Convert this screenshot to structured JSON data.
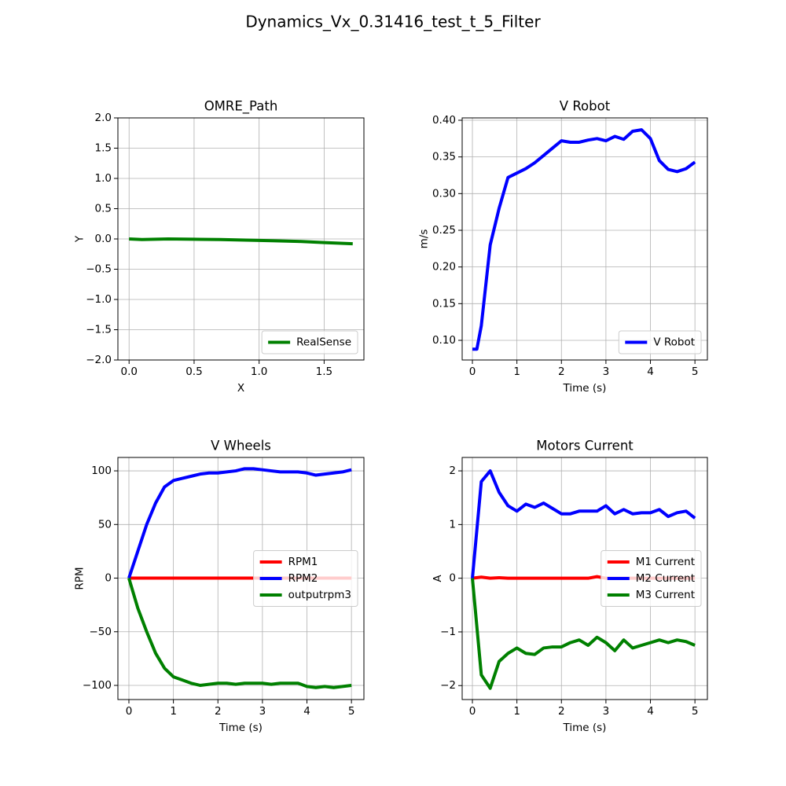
{
  "title": "Dynamics_Vx_0.31416_test_t_5_Filter",
  "chart_data": [
    {
      "type": "line",
      "title": "OMRE_Path",
      "xlabel": "X",
      "ylabel": "Y",
      "x": [
        0,
        0.1,
        0.3,
        0.5,
        0.7,
        0.9,
        1.1,
        1.3,
        1.5,
        1.72
      ],
      "series": [
        {
          "name": "RealSense",
          "color": "#008000",
          "values": [
            0,
            -0.01,
            0,
            -0.005,
            -0.01,
            -0.02,
            -0.03,
            -0.04,
            -0.06,
            -0.08
          ]
        }
      ],
      "xlim": [
        -0.086,
        1.806
      ],
      "ylim": [
        -2.0,
        2.0
      ],
      "xticks": [
        {
          "value": 0,
          "label": "0.0"
        },
        {
          "value": 0.5,
          "label": "0.5"
        },
        {
          "value": 1,
          "label": "1.0"
        },
        {
          "value": 1.5,
          "label": "1.5"
        }
      ],
      "yticks": [
        {
          "value": -2,
          "label": "−2.0"
        },
        {
          "value": -1.5,
          "label": "−1.5"
        },
        {
          "value": -1,
          "label": "−1.0"
        },
        {
          "value": -0.5,
          "label": "−0.5"
        },
        {
          "value": 0,
          "label": "0.0"
        },
        {
          "value": 0.5,
          "label": "0.5"
        },
        {
          "value": 1,
          "label": "1.0"
        },
        {
          "value": 1.5,
          "label": "1.5"
        },
        {
          "value": 2,
          "label": "2.0"
        }
      ],
      "grid": true,
      "legend": "lower right"
    },
    {
      "type": "line",
      "title": "V Robot",
      "xlabel": "Time (s)",
      "ylabel": "m/s",
      "x": [
        0,
        0.1,
        0.2,
        0.4,
        0.6,
        0.8,
        1.0,
        1.2,
        1.4,
        1.6,
        1.8,
        2.0,
        2.2,
        2.4,
        2.6,
        2.8,
        3.0,
        3.2,
        3.4,
        3.6,
        3.8,
        4.0,
        4.2,
        4.4,
        4.6,
        4.8,
        5.0
      ],
      "series": [
        {
          "name": "V Robot",
          "color": "#0000ff",
          "values": [
            0.088,
            0.088,
            0.12,
            0.23,
            0.28,
            0.322,
            0.328,
            0.334,
            0.342,
            0.352,
            0.362,
            0.372,
            0.37,
            0.37,
            0.373,
            0.375,
            0.372,
            0.378,
            0.374,
            0.385,
            0.387,
            0.375,
            0.345,
            0.333,
            0.33,
            0.334,
            0.343
          ]
        }
      ],
      "xlim": [
        -0.23,
        5.28
      ],
      "ylim": [
        0.0732,
        0.4032
      ],
      "xticks": [
        0,
        1,
        2,
        3,
        4,
        5
      ],
      "yticks": [
        {
          "value": 0.1,
          "label": "0.10"
        },
        0.15,
        {
          "value": 0.2,
          "label": "0.20"
        },
        0.25,
        {
          "value": 0.3,
          "label": "0.30"
        },
        0.35,
        {
          "value": 0.4,
          "label": "0.40"
        }
      ],
      "grid": true,
      "legend": "lower right"
    },
    {
      "type": "line",
      "title": "V Wheels",
      "xlabel": "Time (s)",
      "ylabel": "RPM",
      "x": [
        0,
        0.2,
        0.4,
        0.6,
        0.8,
        1.0,
        1.2,
        1.4,
        1.6,
        1.8,
        2.0,
        2.2,
        2.4,
        2.6,
        2.8,
        3.0,
        3.2,
        3.4,
        3.6,
        3.8,
        4.0,
        4.2,
        4.4,
        4.6,
        4.8,
        5.0
      ],
      "series": [
        {
          "name": "RPM1",
          "color": "#ff0000",
          "values": [
            0,
            0,
            0,
            0,
            0,
            0,
            0,
            0,
            0,
            0,
            0,
            0,
            0,
            0,
            0,
            0,
            0,
            0,
            0,
            0,
            0,
            0,
            0,
            0,
            0,
            0
          ]
        },
        {
          "name": "RPM2",
          "color": "#0000ff",
          "values": [
            0,
            25,
            50,
            70,
            85,
            91,
            93,
            95,
            97,
            98,
            98,
            99,
            100,
            102,
            102,
            101,
            100,
            99,
            99,
            99,
            98,
            96,
            97,
            98,
            99,
            101
          ]
        },
        {
          "name": "outputrpm3",
          "color": "#008000",
          "values": [
            0,
            -28,
            -50,
            -70,
            -84,
            -92,
            -95,
            -98,
            -100,
            -99,
            -98,
            -98,
            -99,
            -98,
            -98,
            -98,
            -99,
            -98,
            -98,
            -98,
            -101,
            -102,
            -101,
            -102,
            -101,
            -100
          ]
        }
      ],
      "xlim": [
        -0.247,
        5.28
      ],
      "ylim": [
        -113.2,
        112.5
      ],
      "xticks": [
        0,
        1,
        2,
        3,
        4,
        5
      ],
      "yticks": [
        {
          "value": -100,
          "label": "−100"
        },
        {
          "value": -50,
          "label": "−50"
        },
        0,
        50,
        100
      ],
      "grid": true,
      "legend": "center right"
    },
    {
      "type": "line",
      "title": "Motors Current",
      "xlabel": "Time (s)",
      "ylabel": "A",
      "x": [
        0,
        0.2,
        0.4,
        0.6,
        0.8,
        1.0,
        1.2,
        1.4,
        1.6,
        1.8,
        2.0,
        2.2,
        2.4,
        2.6,
        2.8,
        3.0,
        3.2,
        3.4,
        3.6,
        3.8,
        4.0,
        4.2,
        4.4,
        4.6,
        4.8,
        5.0
      ],
      "series": [
        {
          "name": "M1 Current",
          "color": "#ff0000",
          "values": [
            0,
            0.02,
            0,
            0.01,
            0,
            0,
            0,
            0,
            0,
            0,
            0,
            0,
            0,
            0,
            0.03,
            0,
            0,
            0,
            0,
            0,
            0,
            0,
            0,
            0,
            0,
            0
          ]
        },
        {
          "name": "M2 Current",
          "color": "#0000ff",
          "values": [
            0,
            1.8,
            2.0,
            1.6,
            1.35,
            1.25,
            1.38,
            1.32,
            1.4,
            1.3,
            1.2,
            1.2,
            1.25,
            1.25,
            1.25,
            1.35,
            1.2,
            1.28,
            1.2,
            1.22,
            1.22,
            1.28,
            1.15,
            1.22,
            1.25,
            1.12
          ]
        },
        {
          "name": "M3 Current",
          "color": "#008000",
          "values": [
            0,
            -1.8,
            -2.05,
            -1.55,
            -1.4,
            -1.3,
            -1.4,
            -1.42,
            -1.3,
            -1.28,
            -1.28,
            -1.2,
            -1.15,
            -1.25,
            -1.1,
            -1.2,
            -1.35,
            -1.15,
            -1.3,
            -1.25,
            -1.2,
            -1.15,
            -1.2,
            -1.15,
            -1.18,
            -1.25
          ]
        }
      ],
      "xlim": [
        -0.23,
        5.28
      ],
      "ylim": [
        -2.26,
        2.25
      ],
      "xticks": [
        0,
        1,
        2,
        3,
        4,
        5
      ],
      "yticks": [
        {
          "value": -2,
          "label": "−2"
        },
        {
          "value": -1,
          "label": "−1"
        },
        0,
        1,
        2
      ],
      "grid": true,
      "legend": "center right"
    }
  ]
}
